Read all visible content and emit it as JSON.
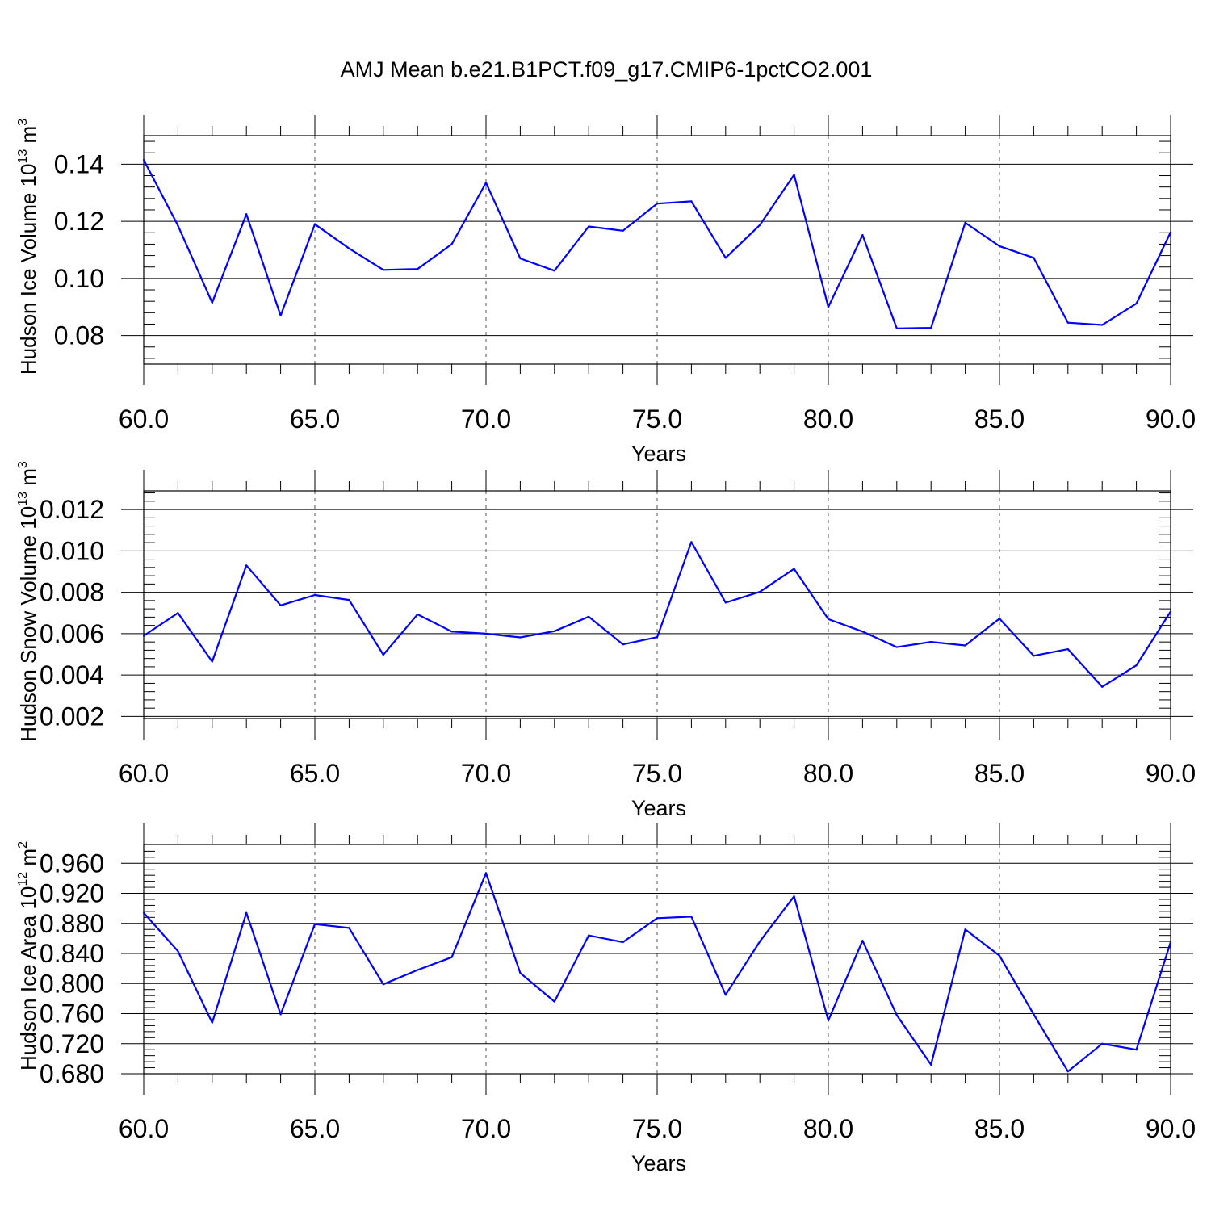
{
  "figure_title": "AMJ Mean b.e21.B1PCT.f09_g17.CMIP6-1pctCO2.001",
  "colors": {
    "line": "#0000ff",
    "axis": "#000000",
    "grid": "#555555"
  },
  "chart_data": [
    {
      "type": "line",
      "xlabel": "Years",
      "ylabel": {
        "main": "Hudson Ice Volume 10",
        "exp": "13",
        "unit": " m",
        "unit_exp": "3"
      },
      "xlim": [
        60,
        90
      ],
      "ylim": [
        0.07,
        0.15
      ],
      "xticks": [
        60,
        65,
        70,
        75,
        80,
        85,
        90
      ],
      "xtick_labels": [
        "60.0",
        "65.0",
        "70.0",
        "75.0",
        "80.0",
        "85.0",
        "90.0"
      ],
      "yticks": [
        0.08,
        0.1,
        0.12,
        0.14
      ],
      "ytick_labels": [
        "0.08",
        "0.10",
        "0.12",
        "0.14"
      ],
      "yminor_step": 0.004,
      "vgrid": [
        65,
        70,
        75,
        80,
        85
      ],
      "x": [
        60,
        61,
        62,
        63,
        64,
        65,
        66,
        67,
        68,
        69,
        70,
        71,
        72,
        73,
        74,
        75,
        76,
        77,
        78,
        79,
        80,
        81,
        82,
        83,
        84,
        85,
        86,
        87,
        88,
        89,
        90
      ],
      "values": [
        0.1415,
        0.1185,
        0.0915,
        0.1225,
        0.087,
        0.119,
        0.1105,
        0.103,
        0.1033,
        0.112,
        0.1335,
        0.107,
        0.1027,
        0.1182,
        0.1167,
        0.1262,
        0.127,
        0.1072,
        0.1187,
        0.1363,
        0.09,
        0.1152,
        0.0825,
        0.0827,
        0.1195,
        0.1113,
        0.1072,
        0.0845,
        0.0837,
        0.0912,
        0.1162
      ]
    },
    {
      "type": "line",
      "xlabel": "Years",
      "ylabel": {
        "main": "Hudson Snow Volume 10",
        "exp": "13",
        "unit": " m",
        "unit_exp": "3"
      },
      "xlim": [
        60,
        90
      ],
      "ylim": [
        0.0019,
        0.0129
      ],
      "xticks": [
        60,
        65,
        70,
        75,
        80,
        85,
        90
      ],
      "xtick_labels": [
        "60.0",
        "65.0",
        "70.0",
        "75.0",
        "80.0",
        "85.0",
        "90.0"
      ],
      "yticks": [
        0.002,
        0.004,
        0.006,
        0.008,
        0.01,
        0.012
      ],
      "ytick_labels": [
        "0.002",
        "0.004",
        "0.006",
        "0.008",
        "0.010",
        "0.012"
      ],
      "yminor_step": 0.0004,
      "vgrid": [
        65,
        70,
        75,
        80,
        85
      ],
      "x": [
        60,
        61,
        62,
        63,
        64,
        65,
        66,
        67,
        68,
        69,
        70,
        71,
        72,
        73,
        74,
        75,
        76,
        77,
        78,
        79,
        80,
        81,
        82,
        83,
        84,
        85,
        86,
        87,
        88,
        89,
        90
      ],
      "values": [
        0.0059,
        0.007,
        0.00465,
        0.0093,
        0.00737,
        0.00787,
        0.00763,
        0.00498,
        0.00693,
        0.0061,
        0.006,
        0.00582,
        0.00612,
        0.00682,
        0.00548,
        0.00583,
        0.01043,
        0.0075,
        0.00802,
        0.00913,
        0.0067,
        0.0061,
        0.00535,
        0.0056,
        0.00543,
        0.00673,
        0.00493,
        0.00525,
        0.00343,
        0.00447,
        0.00707
      ]
    },
    {
      "type": "line",
      "xlabel": "Years",
      "ylabel": {
        "main": "Hudson Ice Area 10",
        "exp": "12",
        "unit": " m",
        "unit_exp": "2"
      },
      "xlim": [
        60,
        90
      ],
      "ylim": [
        0.68,
        0.985
      ],
      "xticks": [
        60,
        65,
        70,
        75,
        80,
        85,
        90
      ],
      "xtick_labels": [
        "60.0",
        "65.0",
        "70.0",
        "75.0",
        "80.0",
        "85.0",
        "90.0"
      ],
      "yticks": [
        0.68,
        0.72,
        0.76,
        0.8,
        0.84,
        0.88,
        0.92,
        0.96
      ],
      "ytick_labels": [
        "0.680",
        "0.720",
        "0.760",
        "0.800",
        "0.840",
        "0.880",
        "0.920",
        "0.960"
      ],
      "yminor_step": 0.008,
      "vgrid": [
        65,
        70,
        75,
        80,
        85
      ],
      "x": [
        60,
        61,
        62,
        63,
        64,
        65,
        66,
        67,
        68,
        69,
        70,
        71,
        72,
        73,
        74,
        75,
        76,
        77,
        78,
        79,
        80,
        81,
        82,
        83,
        84,
        85,
        86,
        87,
        88,
        89,
        90
      ],
      "values": [
        0.894,
        0.843,
        0.748,
        0.894,
        0.759,
        0.879,
        0.874,
        0.799,
        0.818,
        0.835,
        0.947,
        0.814,
        0.776,
        0.864,
        0.855,
        0.887,
        0.889,
        0.785,
        0.856,
        0.916,
        0.751,
        0.857,
        0.758,
        0.692,
        0.872,
        0.837,
        0.759,
        0.683,
        0.72,
        0.712,
        0.855
      ]
    }
  ]
}
